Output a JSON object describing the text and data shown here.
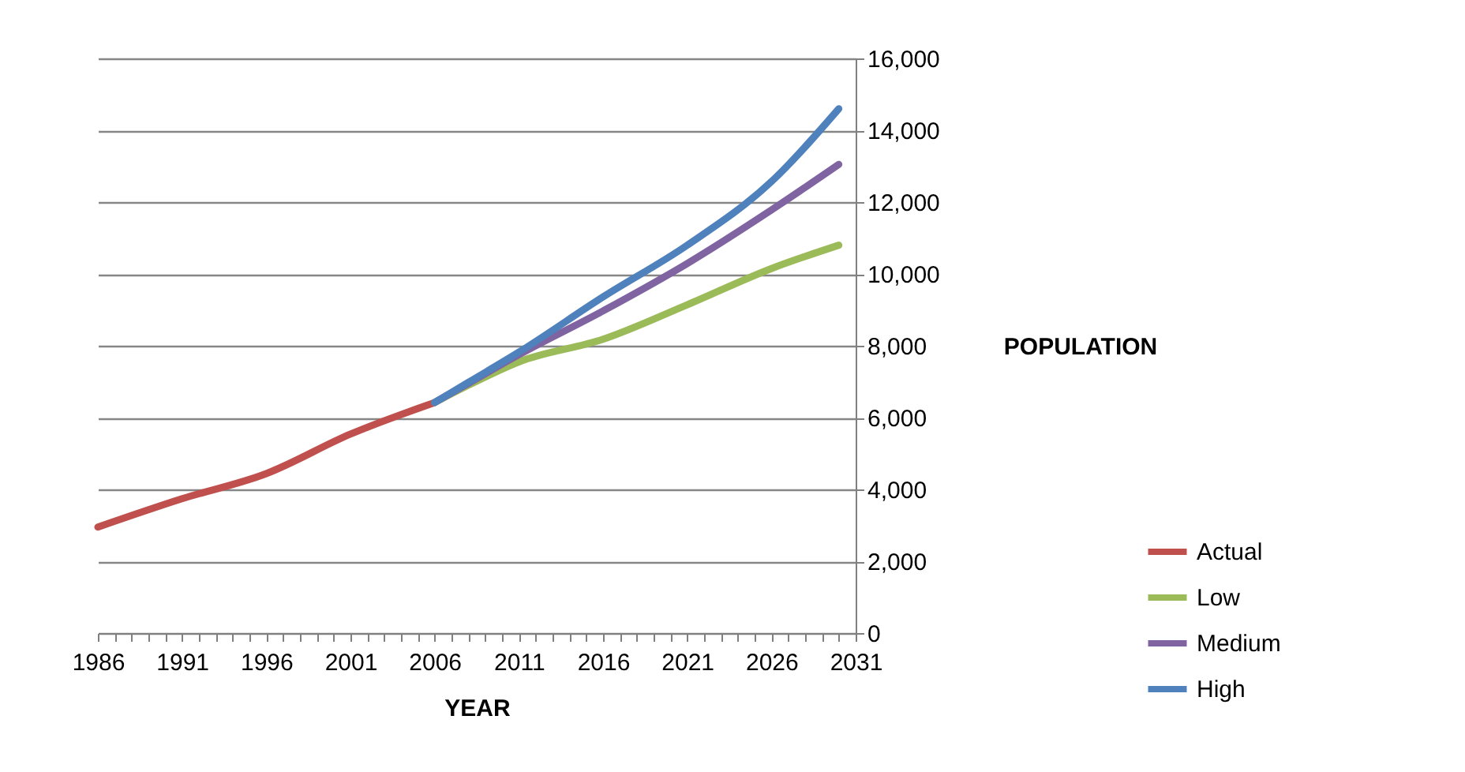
{
  "chart_data": {
    "type": "line",
    "xlabel": "YEAR",
    "ylabel": "POPULATION",
    "xlim": [
      1986,
      2031
    ],
    "ylim": [
      0,
      16000
    ],
    "xticks": [
      1986,
      {
        "value": 1987,
        "label": null
      },
      {
        "value": 1988,
        "label": null
      },
      {
        "value": 1989,
        "label": null
      },
      {
        "value": 1990,
        "label": null
      },
      1991,
      {
        "value": 1992,
        "label": null
      },
      {
        "value": 1993,
        "label": null
      },
      {
        "value": 1994,
        "label": null
      },
      {
        "value": 1995,
        "label": null
      },
      1996,
      {
        "value": 1997,
        "label": null
      },
      {
        "value": 1998,
        "label": null
      },
      {
        "value": 1999,
        "label": null
      },
      {
        "value": 2000,
        "label": null
      },
      2001,
      {
        "value": 2002,
        "label": null
      },
      {
        "value": 2003,
        "label": null
      },
      {
        "value": 2004,
        "label": null
      },
      {
        "value": 2005,
        "label": null
      },
      2006,
      {
        "value": 2007,
        "label": null
      },
      {
        "value": 2008,
        "label": null
      },
      {
        "value": 2009,
        "label": null
      },
      {
        "value": 2010,
        "label": null
      },
      2011,
      {
        "value": 2012,
        "label": null
      },
      {
        "value": 2013,
        "label": null
      },
      {
        "value": 2014,
        "label": null
      },
      {
        "value": 2015,
        "label": null
      },
      2016,
      {
        "value": 2017,
        "label": null
      },
      {
        "value": 2018,
        "label": null
      },
      {
        "value": 2019,
        "label": null
      },
      {
        "value": 2020,
        "label": null
      },
      2021,
      {
        "value": 2022,
        "label": null
      },
      {
        "value": 2023,
        "label": null
      },
      {
        "value": 2024,
        "label": null
      },
      {
        "value": 2025,
        "label": null
      },
      2026,
      {
        "value": 2027,
        "label": null
      },
      {
        "value": 2028,
        "label": null
      },
      {
        "value": 2029,
        "label": null
      },
      {
        "value": 2030,
        "label": null
      },
      2031
    ],
    "yticks": [
      {
        "value": 0,
        "label": "0"
      },
      {
        "value": 2000,
        "label": "2,000"
      },
      {
        "value": 4000,
        "label": "4,000"
      },
      {
        "value": 6000,
        "label": "6,000"
      },
      {
        "value": 8000,
        "label": "8,000"
      },
      {
        "value": 10000,
        "label": "10,000"
      },
      {
        "value": 12000,
        "label": "12,000"
      },
      {
        "value": 14000,
        "label": "14,000"
      },
      {
        "value": 16000,
        "label": "16,000"
      }
    ],
    "grid": "y",
    "legend": "bottom right",
    "marker": "none",
    "line_style": "solid",
    "series": [
      {
        "name": "Actual",
        "color": "#c0504d",
        "x": [
          1986,
          1991,
          1996,
          2001,
          2006
        ],
        "values": [
          2950,
          3740,
          4440,
          5540,
          6420
        ]
      },
      {
        "name": "Low",
        "color": "#9bbb59",
        "x": [
          2006,
          2008,
          2011,
          2016,
          2021,
          2026,
          2030
        ],
        "values": [
          6420,
          6900,
          7550,
          8180,
          9140,
          10150,
          10800
        ]
      },
      {
        "name": "Medium",
        "color": "#8064a2",
        "x": [
          2006,
          2008,
          2011,
          2016,
          2021,
          2026,
          2030
        ],
        "values": [
          6420,
          6950,
          7750,
          8970,
          10290,
          11780,
          13050
        ]
      },
      {
        "name": "High",
        "color": "#4f81bd",
        "x": [
          2006,
          2008,
          2011,
          2016,
          2021,
          2026,
          2030
        ],
        "values": [
          6420,
          6980,
          7820,
          9360,
          10800,
          12570,
          14600
        ]
      }
    ]
  }
}
